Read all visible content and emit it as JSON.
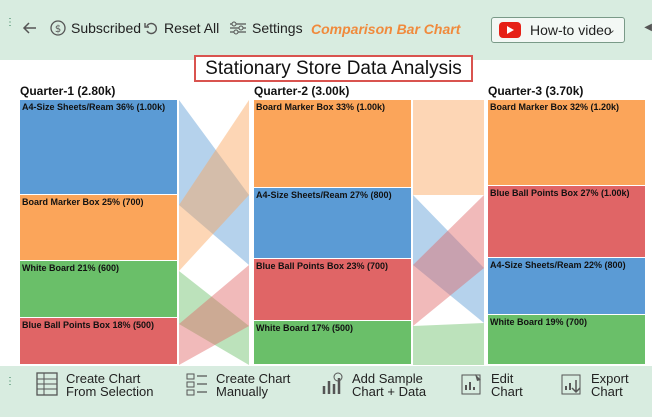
{
  "toolbar": {
    "subscribed_label": "Subscribed",
    "reset_label": "Reset All",
    "settings_label": "Settings",
    "chart_name": "Comparison Bar Chart",
    "howto_label": "How-to video"
  },
  "chart_data": {
    "type": "bar",
    "title": "Stationary Store Data Analysis",
    "quarters": [
      {
        "label": "Quarter-1 (2.80k)",
        "total": 2800,
        "items": [
          {
            "name": "A4-Size Sheets/Ream",
            "label": "A4-Size Sheets/Ream 36% (1.00k)",
            "value": 1000
          },
          {
            "name": "Board Marker Box",
            "label": "Board Marker Box 25% (700)",
            "value": 700
          },
          {
            "name": "White Board",
            "label": "White Board 21% (600)",
            "value": 600
          },
          {
            "name": "Blue Ball Points Box",
            "label": "Blue Ball Points Box 18% (500)",
            "value": 500
          }
        ]
      },
      {
        "label": "Quarter-2 (3.00k)",
        "total": 3000,
        "items": [
          {
            "name": "Board Marker Box",
            "label": "Board Marker Box 33% (1.00k)",
            "value": 1000
          },
          {
            "name": "A4-Size Sheets/Ream",
            "label": "A4-Size Sheets/Ream 27% (800)",
            "value": 800
          },
          {
            "name": "Blue Ball Points Box",
            "label": "Blue Ball Points Box 23% (700)",
            "value": 700
          },
          {
            "name": "White Board",
            "label": "White Board 17% (500)",
            "value": 500
          }
        ]
      },
      {
        "label": "Quarter-3 (3.70k)",
        "total": 3700,
        "items": [
          {
            "name": "Board Marker Box",
            "label": "Board Marker Box 32% (1.20k)",
            "value": 1200
          },
          {
            "name": "Blue Ball Points Box",
            "label": "Blue Ball Points Box 27% (1.00k)",
            "value": 1000
          },
          {
            "name": "A4-Size Sheets/Ream",
            "label": "A4-Size Sheets/Ream 22% (800)",
            "value": 800
          },
          {
            "name": "White Board",
            "label": "White Board 19% (700)",
            "value": 700
          }
        ]
      }
    ],
    "colors": {
      "A4-Size Sheets/Ream": "#5b9bd5",
      "Board Marker Box": "#fba55a",
      "White Board": "#6abf69",
      "Blue Ball Points Box": "#e06566"
    }
  },
  "bottom_bar": {
    "create_selection": [
      "Create Chart",
      "From Selection"
    ],
    "create_manual": [
      "Create Chart",
      "Manually"
    ],
    "add_sample": [
      "Add Sample",
      "Chart + Data"
    ],
    "edit_chart": [
      "Edit",
      "Chart"
    ],
    "export_chart": [
      "Export",
      "Chart"
    ]
  }
}
